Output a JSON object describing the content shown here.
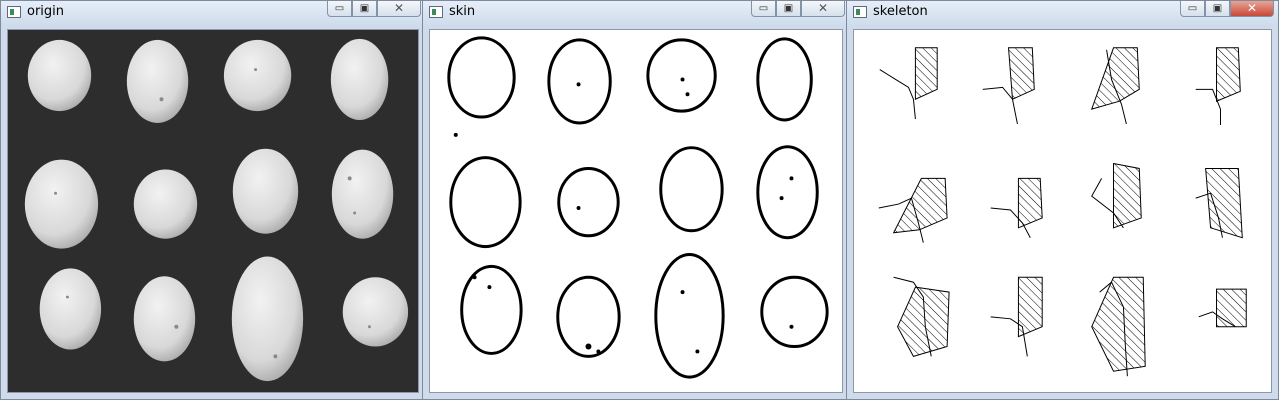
{
  "windows": [
    {
      "id": "origin",
      "title": "origin",
      "active": false,
      "controls": {
        "minimize": "▭",
        "maximize": "▣",
        "close": "✕"
      }
    },
    {
      "id": "skin",
      "title": "skin",
      "active": false,
      "controls": {
        "minimize": "▭",
        "maximize": "▣",
        "close": "✕"
      }
    },
    {
      "id": "skeleton",
      "title": "skeleton",
      "active": true,
      "controls": {
        "minimize": "▭",
        "maximize": "▣",
        "close": "✕"
      }
    }
  ],
  "colors": {
    "potato": "#e6e6e6",
    "potato_shadow": "#bdbdbd",
    "background_dark": "#2b2b2b",
    "outline": "#000000",
    "skeleton_bg": "#ffffff"
  }
}
